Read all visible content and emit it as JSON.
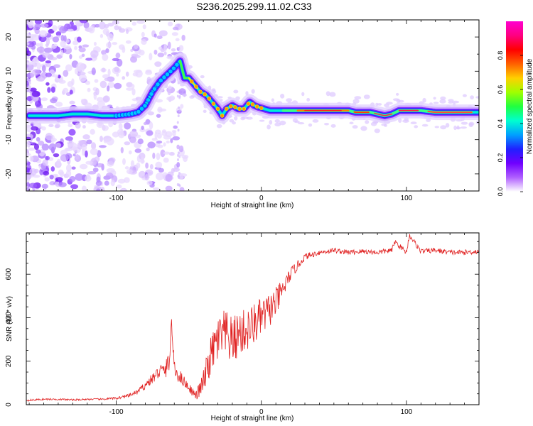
{
  "title": "S236.2025.299.11.02.C33",
  "chart_data": [
    {
      "type": "heatmap",
      "name": "spectrogram",
      "xlabel": "Height of straight line (km)",
      "ylabel": "Frequency (Hz)",
      "xlim": [
        -162,
        150
      ],
      "ylim": [
        -25,
        25
      ],
      "xticks": [
        -100,
        0,
        100
      ],
      "xtick_labels": [
        "-100",
        "0",
        "100"
      ],
      "yticks": [
        -20,
        -10,
        0,
        10,
        20
      ],
      "ytick_labels": [
        "-20",
        "-10",
        "0",
        "10",
        "20"
      ],
      "ridge_x": [
        -160,
        -150,
        -140,
        -130,
        -120,
        -110,
        -100,
        -90,
        -85,
        -80,
        -75,
        -70,
        -65,
        -60,
        -56,
        -53,
        -50,
        -46,
        -42,
        -38,
        -34,
        -30,
        -27,
        -24,
        -20,
        -16,
        -12,
        -8,
        -5,
        -2,
        2,
        6,
        10,
        20,
        30,
        40,
        50,
        60,
        65,
        70,
        75,
        80,
        85,
        90,
        95,
        100,
        110,
        120,
        130,
        140,
        150
      ],
      "ridge_freq": [
        -3,
        -3,
        -3,
        -2.5,
        -2.5,
        -3,
        -3,
        -2.5,
        -2,
        0,
        4,
        7,
        9,
        11,
        13,
        8,
        8,
        6,
        4,
        3,
        1,
        -1,
        -3,
        -1,
        0,
        -1,
        -1,
        1,
        0,
        -0.5,
        -1,
        -1.5,
        -1.5,
        -1.5,
        -1.5,
        -1.5,
        -1.5,
        -1.5,
        -2,
        -2,
        -2,
        -2.5,
        -3,
        -2.5,
        -1.5,
        -1.5,
        -1.5,
        -2,
        -2,
        -2,
        -2
      ]
    },
    {
      "type": "line",
      "name": "snr",
      "xlabel": "Height of straight line (km)",
      "ylabel": "SNR (10 * v/v)",
      "xlim": [
        -162,
        150
      ],
      "ylim": [
        0,
        790
      ],
      "xticks": [
        -100,
        0,
        100
      ],
      "xtick_labels": [
        "-100",
        "0",
        "100"
      ],
      "yticks": [
        0,
        200,
        400,
        600
      ],
      "ytick_labels": [
        "0",
        "200",
        "400",
        "600"
      ],
      "series": [
        {
          "name": "SNR",
          "color": "#e02020",
          "x": [
            -162,
            -150,
            -140,
            -130,
            -120,
            -110,
            -100,
            -92,
            -85,
            -80,
            -75,
            -72,
            -70,
            -68,
            -65,
            -63,
            -62,
            -60,
            -55,
            -50,
            -45,
            -40,
            -35,
            -30,
            -25,
            -20,
            -15,
            -10,
            -5,
            0,
            5,
            10,
            15,
            20,
            30,
            40,
            50,
            60,
            70,
            80,
            90,
            92,
            100,
            102,
            110,
            120,
            130,
            140,
            150
          ],
          "values": [
            20,
            25,
            25,
            22,
            25,
            25,
            30,
            40,
            60,
            90,
            120,
            140,
            160,
            150,
            170,
            230,
            390,
            160,
            120,
            80,
            40,
            100,
            220,
            300,
            320,
            290,
            330,
            340,
            370,
            400,
            430,
            470,
            530,
            600,
            680,
            700,
            710,
            700,
            705,
            700,
            710,
            750,
            700,
            780,
            705,
            710,
            700,
            700,
            705
          ],
          "noise": [
            4,
            4,
            4,
            4,
            4,
            4,
            6,
            8,
            12,
            18,
            25,
            30,
            40,
            40,
            45,
            60,
            20,
            40,
            30,
            20,
            20,
            60,
            90,
            110,
            120,
            110,
            110,
            100,
            100,
            90,
            80,
            70,
            50,
            30,
            15,
            12,
            12,
            12,
            12,
            12,
            12,
            12,
            12,
            12,
            12,
            12,
            12,
            12,
            12
          ]
        }
      ]
    }
  ],
  "colorbar": {
    "label": "Normalized spectral amplitude",
    "ticks": [
      "0.0",
      "0.2",
      "0.4",
      "0.6",
      "0.8"
    ],
    "stops": [
      "#ffffff",
      "#b060ff",
      "#7000ff",
      "#2020ff",
      "#00a0ff",
      "#00ffd0",
      "#20ff40",
      "#a0ff00",
      "#ffd000",
      "#ff6000",
      "#ff0000",
      "#ff0080",
      "#ff00d0"
    ]
  }
}
